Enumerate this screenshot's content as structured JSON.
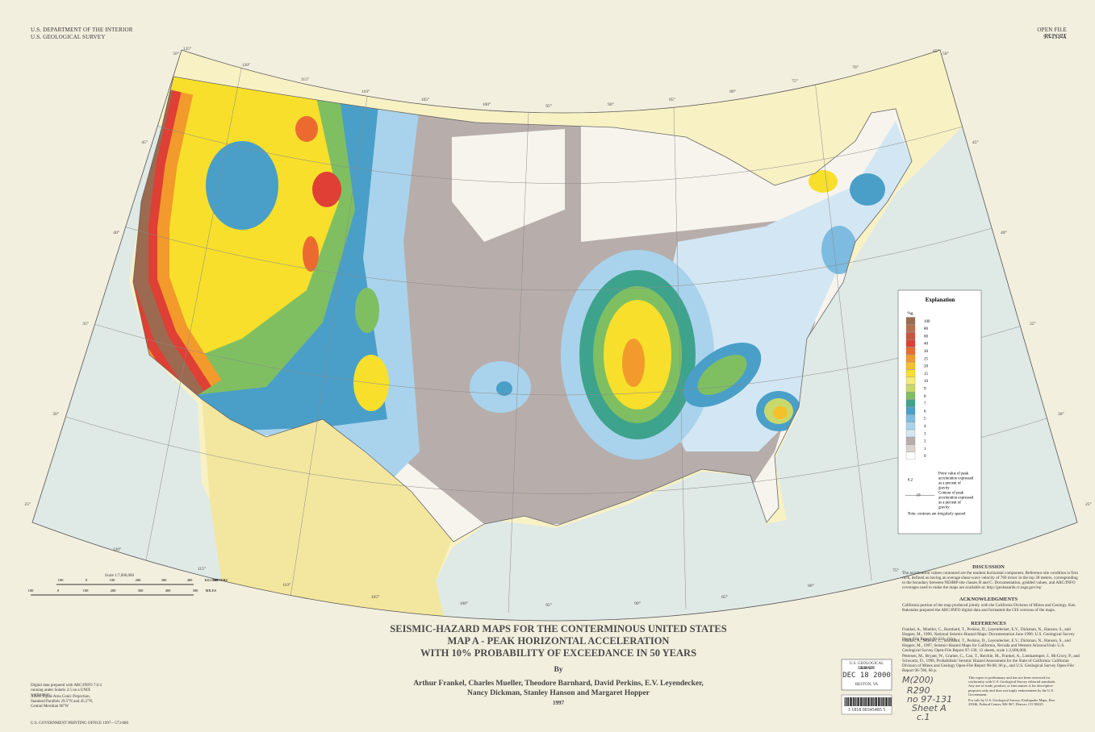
{
  "header": {
    "agency": "U.S. DEPARTMENT OF THE INTERIOR",
    "survey": "U.S. GEOLOGICAL SURVEY",
    "report": "OPEN FILE REPORT",
    "report_number": "97-131-A"
  },
  "title": {
    "line1": "SEISMIC-HAZARD MAPS FOR THE CONTERMINOUS UNITED STATES",
    "line2": "MAP A - PEAK HORIZONTAL ACCELERATION",
    "line3": "WITH 10% PROBABILITY OF EXCEEDANCE IN 50 YEARS",
    "by": "By",
    "authors1": "Arthur Frankel, Charles Mueller, Theodore Barnhard, David Perkins, E.V. Leyendecker,",
    "authors2": "Nancy Dickman, Stanley Hanson and Margaret Hopper",
    "year": "1997"
  },
  "legend": {
    "title": "Explanation",
    "unit": "%g",
    "levels": [
      {
        "label": "100",
        "color": "#9c6a50"
      },
      {
        "label": "80",
        "color": "#b5714e"
      },
      {
        "label": "60",
        "color": "#c8553c"
      },
      {
        "label": "40",
        "color": "#df3f34"
      },
      {
        "label": "30",
        "color": "#ec6a2f"
      },
      {
        "label": "25",
        "color": "#f29a2c"
      },
      {
        "label": "20",
        "color": "#f6c02a"
      },
      {
        "label": "15",
        "color": "#f7df2c"
      },
      {
        "label": "10",
        "color": "#f4ec78"
      },
      {
        "label": "9",
        "color": "#c8d96a"
      },
      {
        "label": "8",
        "color": "#7fbf62"
      },
      {
        "label": "7",
        "color": "#3ea38d"
      },
      {
        "label": "6",
        "color": "#4a9fc8"
      },
      {
        "label": "5",
        "color": "#7dbbe0"
      },
      {
        "label": "4",
        "color": "#a9d3ec"
      },
      {
        "label": "3",
        "color": "#d2e7f3"
      },
      {
        "label": "2",
        "color": "#b7aeac"
      },
      {
        "label": "1",
        "color": "#d9d3cf"
      },
      {
        "label": "0",
        "color": "#ffffff"
      }
    ],
    "point_sample": "6.2",
    "point_text": "Point value of peak acceleration expressed as a percent of gravity",
    "contour_sample": "10",
    "contour_text": "Contour of peak acceleration expressed as a percent of gravity",
    "note": "Note: contours are irregularly spaced"
  },
  "discussion": {
    "heading": "DISCUSSION",
    "text": "The acceleration values contoured are the random horizontal component. Reference site condition is firm rock, defined as having an average shear-wave velocity of 760 m/sec in the top 30 meters, corresponding to the boundary between NEHRP site classes B and C. Documentation, gridded values, and ARC/INFO coverages used to make the maps are available at: http://geohazards.cr.usgs.gov/eq/"
  },
  "acknowledgments": {
    "heading": "ACKNOWLEDGMENTS",
    "text": "California portion of the map produced jointly with the California Division of Mines and Geology. Ken Rukstales prepared the ARC/INFO digital data and formatted the GIS versions of the maps."
  },
  "references": {
    "heading": "REFERENCES",
    "items": [
      "Frankel, A., Mueller, C., Barnhard, T., Perkins, D., Leyendecker, E.V., Dickman, N., Hanson, S., and Hopper, M., 1996, National Seismic-Hazard Maps: Documentation June 1996: U.S. Geological Survey Open-File Report 96-532, 110 p.",
      "Frankel, A., Mueller, C., Barnhard, T., Perkins, D., Leyendecker, E.V., Dickman, N., Hanson, S., and Hopper, M., 1997, Seismic-Hazard Maps for California, Nevada and Western Arizona/Utah: U.S. Geological Survey Open-File Report 97-130, 12 sheets, scale 1:2,000,000.",
      "Petersen, M., Bryant, W., Cramer, C., Cao, T., Reichle, M., Frankel, A., Lienkaemper, J., McCrory, P., and Schwartz, D., 1996, Probabilistic Seismic Hazard Assessment for the State of California: California Division of Mines and Geology Open-File Report 96-08, 66 p., and U.S. Geological Survey Open-File Report 96-706, 66 p."
    ]
  },
  "disclaimer": "This report is preliminary and has not been reviewed for conformity with U.S. Geological Survey editorial standards. Any use of trade, product, or firm names is for descriptive purposes only and does not imply endorsement by the U.S. Government.",
  "sale": "For sale by U.S. Geological Survey, Earthquake Maps, Box 25046, Federal Center, MS 967, Denver, CO 80225",
  "scale": {
    "label": "Scale 1:7,000,000",
    "km_ticks": [
      "100",
      "0",
      "100",
      "200",
      "300",
      "400",
      "500"
    ],
    "km_unit": "KILOMETERS",
    "mi_ticks": [
      "100",
      "0",
      "100",
      "200",
      "300",
      "400",
      "500"
    ],
    "mi_unit": "MILES"
  },
  "notes": {
    "digital": "Digital data prepared with ARC/INFO 7.0.4 running under Solaris 2.5 on a UNIX workstation",
    "projection": "Albers Equal-Area Conic Projection, Standard Parallels 29.5°N and 45.5°N, Central Meridian 96°W",
    "printing": "U.S. GOVERNMENT PRINTING OFFICE 1997—573-086"
  },
  "stamp": {
    "line1": "U.S. GEOLOGICAL SURVEY",
    "line2": "LIBRARY",
    "date": "DEC 18 2000",
    "place": "RESTON, VA"
  },
  "handwriting": [
    "M(200)",
    "R290",
    "no 97-131",
    "Sheet A",
    "c.1"
  ],
  "barcode": "3 1818 00345485 5",
  "graticule": {
    "lon_top": [
      "125°",
      "120°",
      "115°",
      "110°",
      "105°",
      "100°",
      "95°",
      "90°",
      "85°",
      "80°",
      "75°",
      "70°",
      "65°"
    ],
    "lon_bottom": [
      "120°",
      "115°",
      "110°",
      "105°",
      "100°",
      "95°",
      "90°",
      "85°",
      "80°",
      "75°"
    ],
    "lat_left": [
      "50°",
      "45°",
      "40°",
      "35°",
      "30°",
      "25°"
    ],
    "lat_right": [
      "50°",
      "45°",
      "40°",
      "35°",
      "30°",
      "25°"
    ]
  }
}
